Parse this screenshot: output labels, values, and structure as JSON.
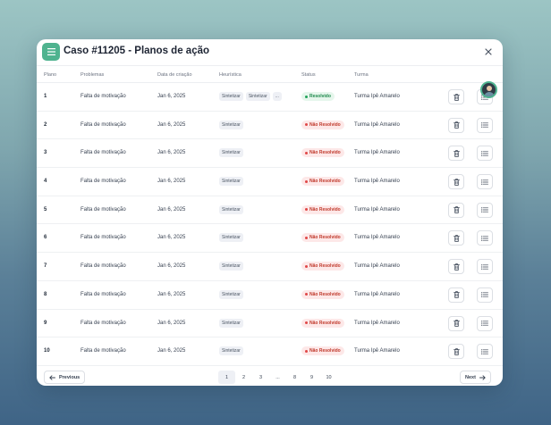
{
  "modal": {
    "title": "Caso #11205 - Planos de ação",
    "menu_icon": "menu-icon",
    "close_icon": "close-icon"
  },
  "table": {
    "headers": {
      "plano": "Plano",
      "problemas": "Problemas",
      "data": "Data de criação",
      "heuristica": "Heurística",
      "status": "Status",
      "turma": "Turma"
    },
    "rows": [
      {
        "plano": "1",
        "problema": "Falta de motivação",
        "data": "Jan 6, 2025",
        "tags": [
          "Sintetizar",
          "Sintetizar",
          "..."
        ],
        "status": "Resolvido",
        "status_type": "ok",
        "turma": "Turma Ipê Amarelo"
      },
      {
        "plano": "2",
        "problema": "Falta de motivação",
        "data": "Jan 6, 2025",
        "tags": [
          "Sintetizar"
        ],
        "status": "Não Resolvido",
        "status_type": "no",
        "turma": "Turma Ipê Amarelo"
      },
      {
        "plano": "3",
        "problema": "Falta de motivação",
        "data": "Jan 6, 2025",
        "tags": [
          "Sintetizar"
        ],
        "status": "Não Resolvido",
        "status_type": "no",
        "turma": "Turma Ipê Amarelo"
      },
      {
        "plano": "4",
        "problema": "Falta de motivação",
        "data": "Jan 6, 2025",
        "tags": [
          "Sintetizar"
        ],
        "status": "Não Resolvido",
        "status_type": "no",
        "turma": "Turma Ipê Amarelo"
      },
      {
        "plano": "5",
        "problema": "Falta de motivação",
        "data": "Jan 6, 2025",
        "tags": [
          "Sintetizar"
        ],
        "status": "Não Resolvido",
        "status_type": "no",
        "turma": "Turma Ipê Amarelo"
      },
      {
        "plano": "6",
        "problema": "Falta de motivação",
        "data": "Jan 6, 2025",
        "tags": [
          "Sintetizar"
        ],
        "status": "Não Resolvido",
        "status_type": "no",
        "turma": "Turma Ipê Amarelo"
      },
      {
        "plano": "7",
        "problema": "Falta de motivação",
        "data": "Jan 6, 2025",
        "tags": [
          "Sintetizar"
        ],
        "status": "Não Resolvido",
        "status_type": "no",
        "turma": "Turma Ipê Amarelo"
      },
      {
        "plano": "8",
        "problema": "Falta de motivação",
        "data": "Jan 6, 2025",
        "tags": [
          "Sintetizar"
        ],
        "status": "Não Resolvido",
        "status_type": "no",
        "turma": "Turma Ipê Amarelo"
      },
      {
        "plano": "9",
        "problema": "Falta de motivação",
        "data": "Jan 6, 2025",
        "tags": [
          "Sintetizar"
        ],
        "status": "Não Resolvido",
        "status_type": "no",
        "turma": "Turma Ipê Amarelo"
      },
      {
        "plano": "10",
        "problema": "Falta de motivação",
        "data": "Jan 6, 2025",
        "tags": [
          "Sintetizar"
        ],
        "status": "Não Resolvido",
        "status_type": "no",
        "turma": "Turma Ipê Amarelo"
      }
    ],
    "row_action_icons": [
      "trash-icon",
      "list-icon"
    ]
  },
  "pagination": {
    "previous": "Previous",
    "next": "Next",
    "pages": [
      "1",
      "2",
      "3",
      "...",
      "8",
      "9",
      "10"
    ],
    "active_page": "1"
  },
  "colors": {
    "accent": "#4fb38f",
    "resolved": "#22a35a",
    "not_resolved": "#e04848"
  }
}
